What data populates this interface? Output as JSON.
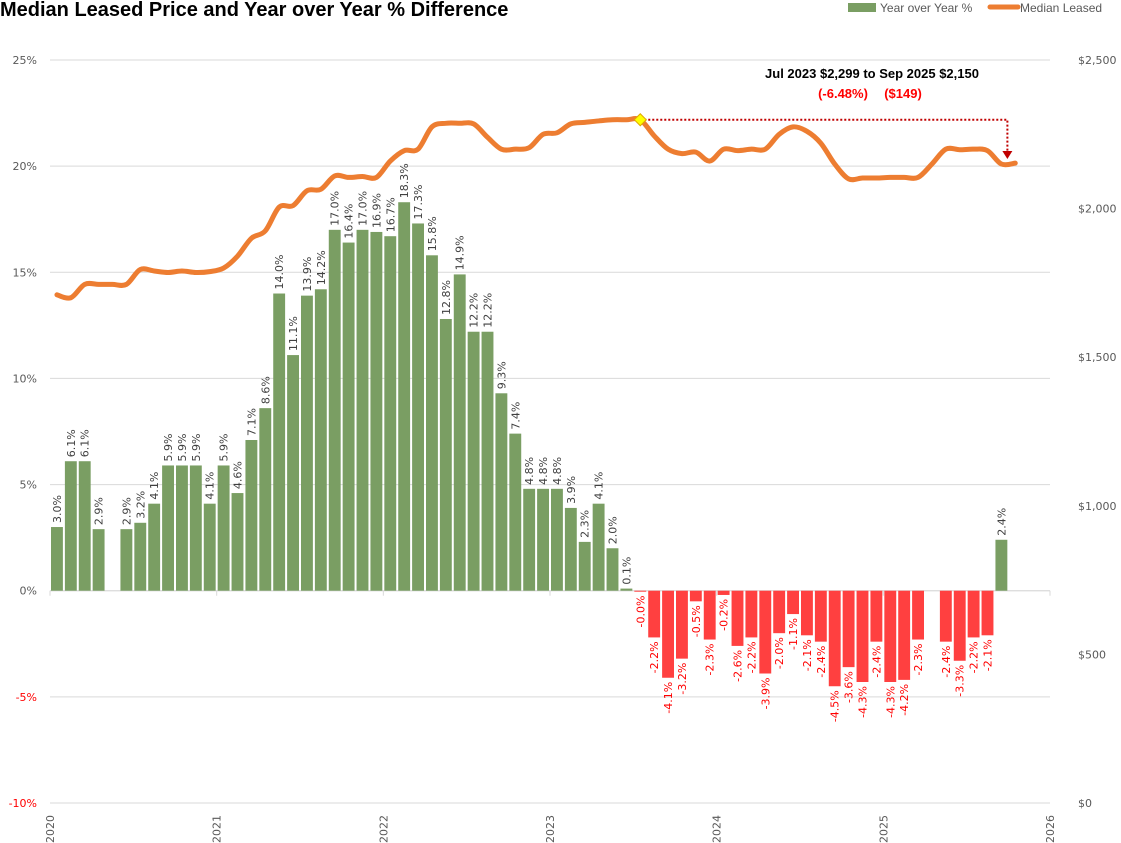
{
  "chart_data": {
    "type": "bar+line",
    "title": "Median Leased Price and Year over Year % Difference",
    "legend": {
      "position": "top-right",
      "entries": [
        {
          "name": "Year over Year %",
          "color": "#7a9e63",
          "kind": "bar"
        },
        {
          "name": "Median Leased",
          "color": "#ed7d31",
          "kind": "line"
        }
      ]
    },
    "x_axis": {
      "ticks": [
        "2020",
        "2021",
        "2022",
        "2023",
        "2024",
        "2025",
        "2026"
      ],
      "range": [
        "2020-01",
        "2026-01"
      ]
    },
    "y_left": {
      "ticks": [
        "25%",
        "20%",
        "15%",
        "10%",
        "5%",
        "0%",
        "-5%",
        "-10%"
      ],
      "range": [
        -10,
        25
      ],
      "negative_color": "#ff0000"
    },
    "y_right": {
      "ticks": [
        "$2,500",
        "$2,000",
        "$1,500",
        "$1,000",
        "$500",
        "$0"
      ],
      "range": [
        0,
        2500
      ]
    },
    "grid": true,
    "colors": {
      "positive_bar": "#7a9e63",
      "negative_bar": "#ff4040",
      "line": "#ed7d31",
      "positive_label": "#404040",
      "negative_label": "#ff0000",
      "annotation_arrow": "#c00000",
      "marker": "#ffff00"
    },
    "yoy_series": {
      "name": "Year over Year %",
      "points": [
        {
          "m": "2020-01",
          "v": 3.0,
          "label": "3.0%"
        },
        {
          "m": "2020-02",
          "v": 6.1,
          "label": "6.1%"
        },
        {
          "m": "2020-03",
          "v": 6.1,
          "label": "6.1%"
        },
        {
          "m": "2020-04",
          "v": 2.9,
          "label": "2.9%"
        },
        {
          "m": "2020-06",
          "v": 2.9,
          "label": "2.9%"
        },
        {
          "m": "2020-07",
          "v": 3.2,
          "label": "3.2%"
        },
        {
          "m": "2020-08",
          "v": 4.1,
          "label": "4.1%"
        },
        {
          "m": "2020-09",
          "v": 5.9,
          "label": "5.9%"
        },
        {
          "m": "2020-10",
          "v": 5.9,
          "label": "5.9%"
        },
        {
          "m": "2020-11",
          "v": 5.9,
          "label": "5.9%"
        },
        {
          "m": "2020-12",
          "v": 4.1,
          "label": "4.1%"
        },
        {
          "m": "2021-01",
          "v": 5.9,
          "label": "5.9%"
        },
        {
          "m": "2021-02",
          "v": 4.6,
          "label": "4.6%"
        },
        {
          "m": "2021-03",
          "v": 7.1,
          "label": "7.1%"
        },
        {
          "m": "2021-04",
          "v": 8.6,
          "label": "8.6%"
        },
        {
          "m": "2021-05",
          "v": 14.0,
          "label": "14.0%"
        },
        {
          "m": "2021-06",
          "v": 11.1,
          "label": "11.1%"
        },
        {
          "m": "2021-07",
          "v": 13.9,
          "label": "13.9%"
        },
        {
          "m": "2021-08",
          "v": 14.2,
          "label": "14.2%"
        },
        {
          "m": "2021-09",
          "v": 17.0,
          "label": "17.0%"
        },
        {
          "m": "2021-10",
          "v": 16.4,
          "label": "16.4%"
        },
        {
          "m": "2021-11",
          "v": 17.0,
          "label": "17.0%"
        },
        {
          "m": "2021-12",
          "v": 16.9,
          "label": "16.9%"
        },
        {
          "m": "2022-01",
          "v": 16.7,
          "label": "16.7%"
        },
        {
          "m": "2022-02",
          "v": 18.3,
          "label": "18.3%"
        },
        {
          "m": "2022-03",
          "v": 17.3,
          "label": "17.3%"
        },
        {
          "m": "2022-04",
          "v": 15.8,
          "label": "15.8%"
        },
        {
          "m": "2022-05",
          "v": 12.8,
          "label": "12.8%"
        },
        {
          "m": "2022-06",
          "v": 14.9,
          "label": "14.9%"
        },
        {
          "m": "2022-07",
          "v": 12.2,
          "label": "12.2%"
        },
        {
          "m": "2022-08",
          "v": 12.2,
          "label": "12.2%"
        },
        {
          "m": "2022-09",
          "v": 9.3,
          "label": "9.3%"
        },
        {
          "m": "2022-10",
          "v": 7.4,
          "label": "7.4%"
        },
        {
          "m": "2022-11",
          "v": 4.8,
          "label": "4.8%"
        },
        {
          "m": "2022-12",
          "v": 4.8,
          "label": "4.8%"
        },
        {
          "m": "2023-01",
          "v": 4.8,
          "label": "4.8%"
        },
        {
          "m": "2023-02",
          "v": 3.9,
          "label": "3.9%"
        },
        {
          "m": "2023-03",
          "v": 2.3,
          "label": "2.3%"
        },
        {
          "m": "2023-04",
          "v": 4.1,
          "label": "4.1%"
        },
        {
          "m": "2023-05",
          "v": 2.0,
          "label": "2.0%"
        },
        {
          "m": "2023-06",
          "v": 0.1,
          "label": "0.1%"
        },
        {
          "m": "2023-07",
          "v": -0.04,
          "label": "-0.0%"
        },
        {
          "m": "2023-08",
          "v": -2.2,
          "label": "-2.2%"
        },
        {
          "m": "2023-09",
          "v": -4.1,
          "label": "-4.1%"
        },
        {
          "m": "2023-10",
          "v": -3.2,
          "label": "-3.2%"
        },
        {
          "m": "2023-11",
          "v": -0.5,
          "label": "-0.5%"
        },
        {
          "m": "2023-12",
          "v": -2.3,
          "label": "-2.3%"
        },
        {
          "m": "2024-01",
          "v": -0.2,
          "label": "-0.2%"
        },
        {
          "m": "2024-02",
          "v": -2.6,
          "label": "-2.6%"
        },
        {
          "m": "2024-03",
          "v": -2.2,
          "label": "-2.2%"
        },
        {
          "m": "2024-04",
          "v": -3.9,
          "label": "-3.9%"
        },
        {
          "m": "2024-05",
          "v": -2.0,
          "label": "-2.0%"
        },
        {
          "m": "2024-06",
          "v": -1.1,
          "label": "-1.1%"
        },
        {
          "m": "2024-07",
          "v": -2.1,
          "label": "-2.1%"
        },
        {
          "m": "2024-08",
          "v": -2.4,
          "label": "-2.4%"
        },
        {
          "m": "2024-09",
          "v": -4.5,
          "label": "-4.5%"
        },
        {
          "m": "2024-10",
          "v": -3.6,
          "label": "-3.6%"
        },
        {
          "m": "2024-11",
          "v": -4.3,
          "label": "-4.3%"
        },
        {
          "m": "2024-12",
          "v": -2.4,
          "label": "-2.4%"
        },
        {
          "m": "2025-01",
          "v": -4.3,
          "label": "-4.3%"
        },
        {
          "m": "2025-02",
          "v": -4.2,
          "label": "-4.2%"
        },
        {
          "m": "2025-03",
          "v": -2.3,
          "label": "-2.3%"
        },
        {
          "m": "2025-05",
          "v": -2.4,
          "label": "-2.4%"
        },
        {
          "m": "2025-06",
          "v": -3.3,
          "label": "-3.3%"
        },
        {
          "m": "2025-07",
          "v": -2.2,
          "label": "-2.2%"
        },
        {
          "m": "2025-08",
          "v": -2.1,
          "label": "-2.1%"
        },
        {
          "m": "2025-09",
          "v": 2.4,
          "label": "2.4%"
        }
      ]
    },
    "price_series": {
      "name": "Median Leased",
      "points": [
        [
          "2020-01",
          1710
        ],
        [
          "2020-02",
          1700
        ],
        [
          "2020-03",
          1745
        ],
        [
          "2020-04",
          1745
        ],
        [
          "2020-05",
          1745
        ],
        [
          "2020-06",
          1745
        ],
        [
          "2020-07",
          1795
        ],
        [
          "2020-08",
          1790
        ],
        [
          "2020-09",
          1785
        ],
        [
          "2020-10",
          1790
        ],
        [
          "2020-11",
          1785
        ],
        [
          "2020-12",
          1788
        ],
        [
          "2021-01",
          1800
        ],
        [
          "2021-02",
          1840
        ],
        [
          "2021-03",
          1900
        ],
        [
          "2021-04",
          1925
        ],
        [
          "2021-05",
          2005
        ],
        [
          "2021-06",
          2010
        ],
        [
          "2021-07",
          2060
        ],
        [
          "2021-08",
          2065
        ],
        [
          "2021-09",
          2110
        ],
        [
          "2021-10",
          2105
        ],
        [
          "2021-11",
          2108
        ],
        [
          "2021-12",
          2105
        ],
        [
          "2022-01",
          2160
        ],
        [
          "2022-02",
          2195
        ],
        [
          "2022-03",
          2200
        ],
        [
          "2022-04",
          2275
        ],
        [
          "2022-05",
          2287
        ],
        [
          "2022-06",
          2287
        ],
        [
          "2022-07",
          2285
        ],
        [
          "2022-08",
          2240
        ],
        [
          "2022-09",
          2200
        ],
        [
          "2022-10",
          2200
        ],
        [
          "2022-11",
          2205
        ],
        [
          "2022-12",
          2250
        ],
        [
          "2023-01",
          2255
        ],
        [
          "2023-02",
          2285
        ],
        [
          "2023-03",
          2290
        ],
        [
          "2023-04",
          2295
        ],
        [
          "2023-05",
          2299
        ],
        [
          "2023-06",
          2299
        ],
        [
          "2023-07",
          2299
        ],
        [
          "2023-08",
          2245
        ],
        [
          "2023-09",
          2200
        ],
        [
          "2023-10",
          2185
        ],
        [
          "2023-11",
          2190
        ],
        [
          "2023-12",
          2160
        ],
        [
          "2024-01",
          2200
        ],
        [
          "2024-02",
          2195
        ],
        [
          "2024-03",
          2200
        ],
        [
          "2024-04",
          2200
        ],
        [
          "2024-05",
          2250
        ],
        [
          "2024-06",
          2275
        ],
        [
          "2024-07",
          2260
        ],
        [
          "2024-08",
          2220
        ],
        [
          "2024-09",
          2150
        ],
        [
          "2024-10",
          2100
        ],
        [
          "2024-11",
          2103
        ],
        [
          "2024-12",
          2103
        ],
        [
          "2025-01",
          2105
        ],
        [
          "2025-02",
          2105
        ],
        [
          "2025-03",
          2105
        ],
        [
          "2025-04",
          2150
        ],
        [
          "2025-05",
          2200
        ],
        [
          "2025-06",
          2198
        ],
        [
          "2025-07",
          2200
        ],
        [
          "2025-08",
          2195
        ],
        [
          "2025-09",
          2150
        ],
        [
          "2025-10",
          2153
        ]
      ]
    },
    "annotation": {
      "line1": "Jul 2023 $2,299 to Sep 2025 $2,150",
      "pct": "(-6.48%)",
      "amount": "($149)",
      "from": {
        "m": "2023-07",
        "value": 2299
      },
      "to": {
        "m": "2025-09",
        "value": 2150
      }
    }
  }
}
